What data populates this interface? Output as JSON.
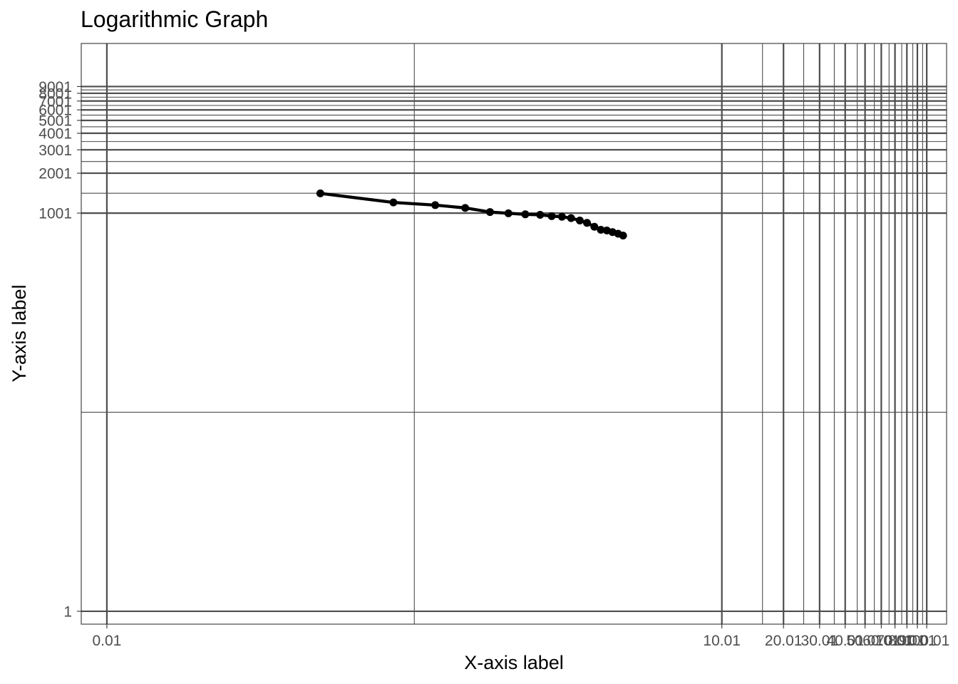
{
  "chart_data": {
    "type": "line",
    "title": "Logarithmic Graph",
    "xlabel": "X-axis label",
    "ylabel": "Y-axis label",
    "x_scale": "log",
    "y_scale": "log",
    "xlim": [
      0.0075,
      125
    ],
    "ylim": [
      0.8,
      19000
    ],
    "grid": true,
    "x_ticks": [
      0.01,
      10.01,
      20.01,
      30.01,
      40.01,
      50.01,
      60.01,
      70.01,
      80.01,
      90.01,
      100.01
    ],
    "x_tick_labels": [
      "0.01",
      "10.01",
      "20.01",
      "30.01",
      "40.01",
      "50.01",
      "60.01",
      "70.01",
      "80.01",
      "90.01",
      "100.01"
    ],
    "y_ticks": [
      1,
      1001,
      2001,
      3001,
      4001,
      5001,
      6001,
      7001,
      8001,
      9001
    ],
    "y_tick_labels": [
      "1",
      "1001",
      "2001",
      "3001",
      "4001",
      "5001",
      "6001",
      "7001",
      "8001",
      "9001"
    ],
    "x_minor_grid": [
      0.3162,
      316.2,
      15.8,
      25.1,
      35.4,
      45.8,
      55.5,
      65.5,
      75.5,
      85.5,
      95.5
    ],
    "y_minor_grid": [
      31.64,
      1414,
      2451,
      3466,
      4474,
      5479,
      6481,
      7483,
      8485
    ],
    "series": [
      {
        "color": "#000000",
        "x": [
          0.11,
          0.25,
          0.4,
          0.56,
          0.74,
          0.91,
          1.1,
          1.3,
          1.48,
          1.66,
          1.84,
          2.03,
          2.2,
          2.39,
          2.57,
          2.75,
          2.93,
          3.12,
          3.3
        ],
        "y": [
          1410,
          1205,
          1150,
          1095,
          1020,
          998,
          980,
          972,
          950,
          940,
          918,
          880,
          845,
          790,
          750,
          740,
          720,
          700,
          678
        ]
      }
    ]
  }
}
